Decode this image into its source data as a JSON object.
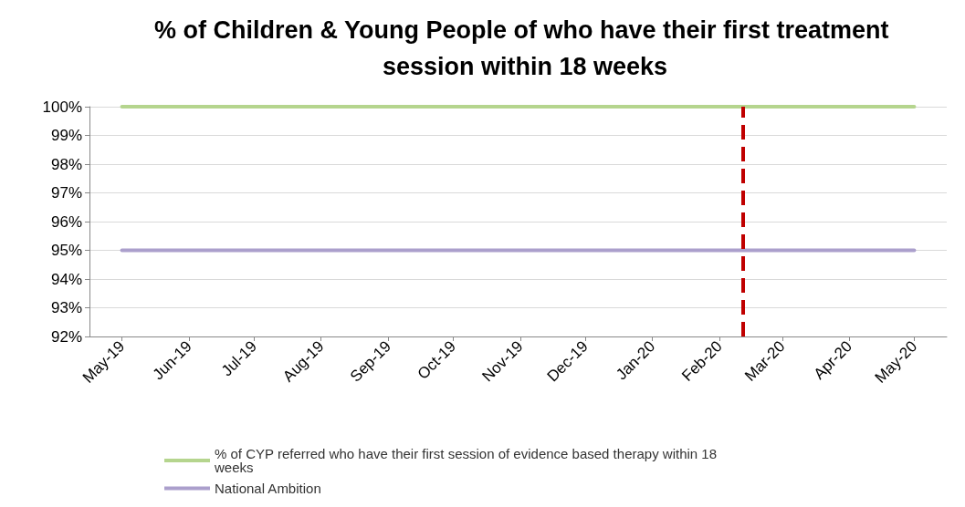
{
  "chart_data": {
    "type": "line",
    "title": "% of Children & Young People of who have their first treatment session within 18 weeks",
    "x": [
      "2019-05",
      "2019-06",
      "2019-07",
      "2019-08",
      "2019-09",
      "2019-10",
      "2019-11",
      "2019-12",
      "2020-01",
      "2020-02",
      "2020-03",
      "2020-04",
      "2020-05"
    ],
    "series": [
      {
        "name": "% of CYP referred who have their first session of evidence based therapy within 18 weeks",
        "color": "#b5d58e",
        "values": [
          100,
          100,
          100,
          100,
          100,
          100,
          100,
          100,
          100,
          100,
          100,
          100,
          100
        ]
      },
      {
        "name": "National Ambition",
        "color": "#ab9fcc",
        "values": [
          95,
          95,
          95,
          95,
          95,
          95,
          95,
          95,
          95,
          95,
          95,
          95,
          95
        ]
      }
    ],
    "xlim": [
      "2019-04-16",
      "2020-05-16"
    ],
    "xticks": [
      {
        "value": "2019-05",
        "label": "May-19"
      },
      {
        "value": "2019-06",
        "label": "Jun-19"
      },
      {
        "value": "2019-07",
        "label": "Jul-19"
      },
      {
        "value": "2019-08",
        "label": "Aug-19"
      },
      {
        "value": "2019-09",
        "label": "Sep-19"
      },
      {
        "value": "2019-10",
        "label": "Oct-19"
      },
      {
        "value": "2019-11",
        "label": "Nov-19"
      },
      {
        "value": "2019-12",
        "label": "Dec-19"
      },
      {
        "value": "2020-01",
        "label": "Jan-20"
      },
      {
        "value": "2020-02",
        "label": "Feb-20"
      },
      {
        "value": "2020-03",
        "label": "Mar-20"
      },
      {
        "value": "2020-04",
        "label": "Apr-20"
      },
      {
        "value": "2020-05",
        "label": "May-20"
      }
    ],
    "ylim": [
      92,
      100
    ],
    "yticks": [
      {
        "value": 92,
        "label": "92%"
      },
      {
        "value": 93,
        "label": "93%"
      },
      {
        "value": 94,
        "label": "94%"
      },
      {
        "value": 95,
        "label": "95%"
      },
      {
        "value": 96,
        "label": "96%"
      },
      {
        "value": 97,
        "label": "97%"
      },
      {
        "value": 98,
        "label": "98%"
      },
      {
        "value": 99,
        "label": "99%"
      },
      {
        "value": 100,
        "label": "100%"
      }
    ],
    "ref_lines": [
      {
        "axis": "x",
        "value": "2020-02-12",
        "color": "#c00000",
        "line_style": "dashed"
      }
    ],
    "grid": "y",
    "legend": "bottom",
    "marker": "none"
  }
}
